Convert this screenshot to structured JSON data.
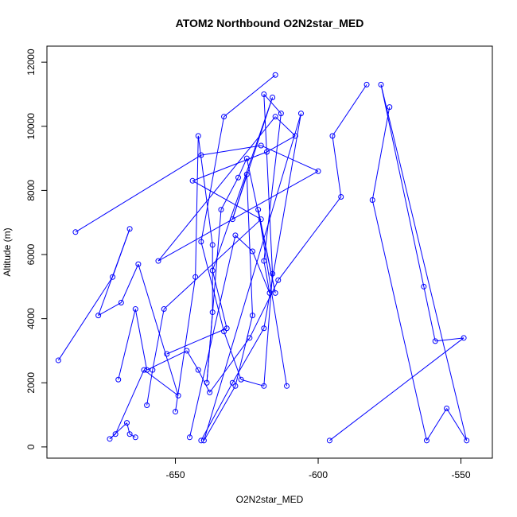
{
  "chart_data": {
    "type": "line",
    "title": "ATOM2 Northbound O2N2star_MED",
    "xlabel": "O2N2star_MED",
    "ylabel": "Altitude (m)",
    "xlim": [
      -695,
      -539
    ],
    "ylim": [
      -350,
      12500
    ],
    "xticks": [
      -650,
      -600,
      -550
    ],
    "xtick_labels": [
      "-650",
      "-600",
      "-550"
    ],
    "yticks": [
      0,
      2000,
      4000,
      6000,
      8000,
      10000,
      12000
    ],
    "ytick_labels": [
      "0",
      "2000",
      "4000",
      "6000",
      "8000",
      "10000",
      "12000"
    ],
    "series_color": "#0000ff",
    "marker": "open-circle",
    "series": [
      {
        "x": [
          -615,
          -633,
          -641,
          -633,
          -627,
          -619,
          -616,
          -619,
          -613,
          -619,
          -617,
          -623,
          -629,
          -645
        ],
        "y": [
          11600,
          10300,
          6400,
          3600,
          2100,
          1900,
          5400,
          11000,
          10400,
          5800,
          4800,
          6100,
          6600,
          300
        ]
      },
      {
        "x": [
          -691,
          -672,
          -666,
          -677,
          -669,
          -663,
          -649,
          -661,
          -671,
          -673,
          -667,
          -666,
          -664
        ],
        "y": [
          2700,
          5300,
          6800,
          4100,
          4500,
          5700,
          1600,
          2400,
          400,
          250,
          750,
          400,
          300
        ]
      },
      {
        "x": [
          -685,
          -641,
          -620,
          -600,
          -656,
          -615,
          -608,
          -618,
          -644,
          -620,
          -654,
          -658,
          -660
        ],
        "y": [
          6700,
          9100,
          9400,
          8600,
          5800,
          10300,
          9700,
          9200,
          8300,
          7100,
          4300,
          2400,
          1300
        ]
      },
      {
        "x": [
          -641,
          -630,
          -619,
          -606,
          -640,
          -629,
          -623,
          -625,
          -630,
          -616,
          -637,
          -632,
          -653
        ],
        "y": [
          200,
          2000,
          3700,
          10400,
          200,
          1900,
          4100,
          8500,
          7100,
          10900,
          5500,
          3700,
          2900
        ]
      },
      {
        "x": [
          -611,
          -621,
          -615,
          -625,
          -628,
          -634,
          -639,
          -637,
          -637,
          -642,
          -643,
          -650
        ],
        "y": [
          1900,
          7400,
          4800,
          9000,
          8400,
          7400,
          2000,
          4200,
          6300,
          9700,
          5300,
          1100
        ]
      },
      {
        "x": [
          -583,
          -595,
          -592,
          -614,
          -624,
          -638,
          -642,
          -646,
          -660,
          -664,
          -670
        ],
        "y": [
          11300,
          9700,
          7800,
          5200,
          3400,
          1700,
          2400,
          3000,
          2400,
          4300,
          2100
        ]
      },
      {
        "x": [
          -575,
          -581,
          -562,
          -555,
          -548,
          -578,
          -563,
          -559,
          -549,
          -596
        ],
        "y": [
          10600,
          7700,
          200,
          1200,
          200,
          11300,
          5000,
          3300,
          3400,
          200
        ]
      }
    ]
  }
}
